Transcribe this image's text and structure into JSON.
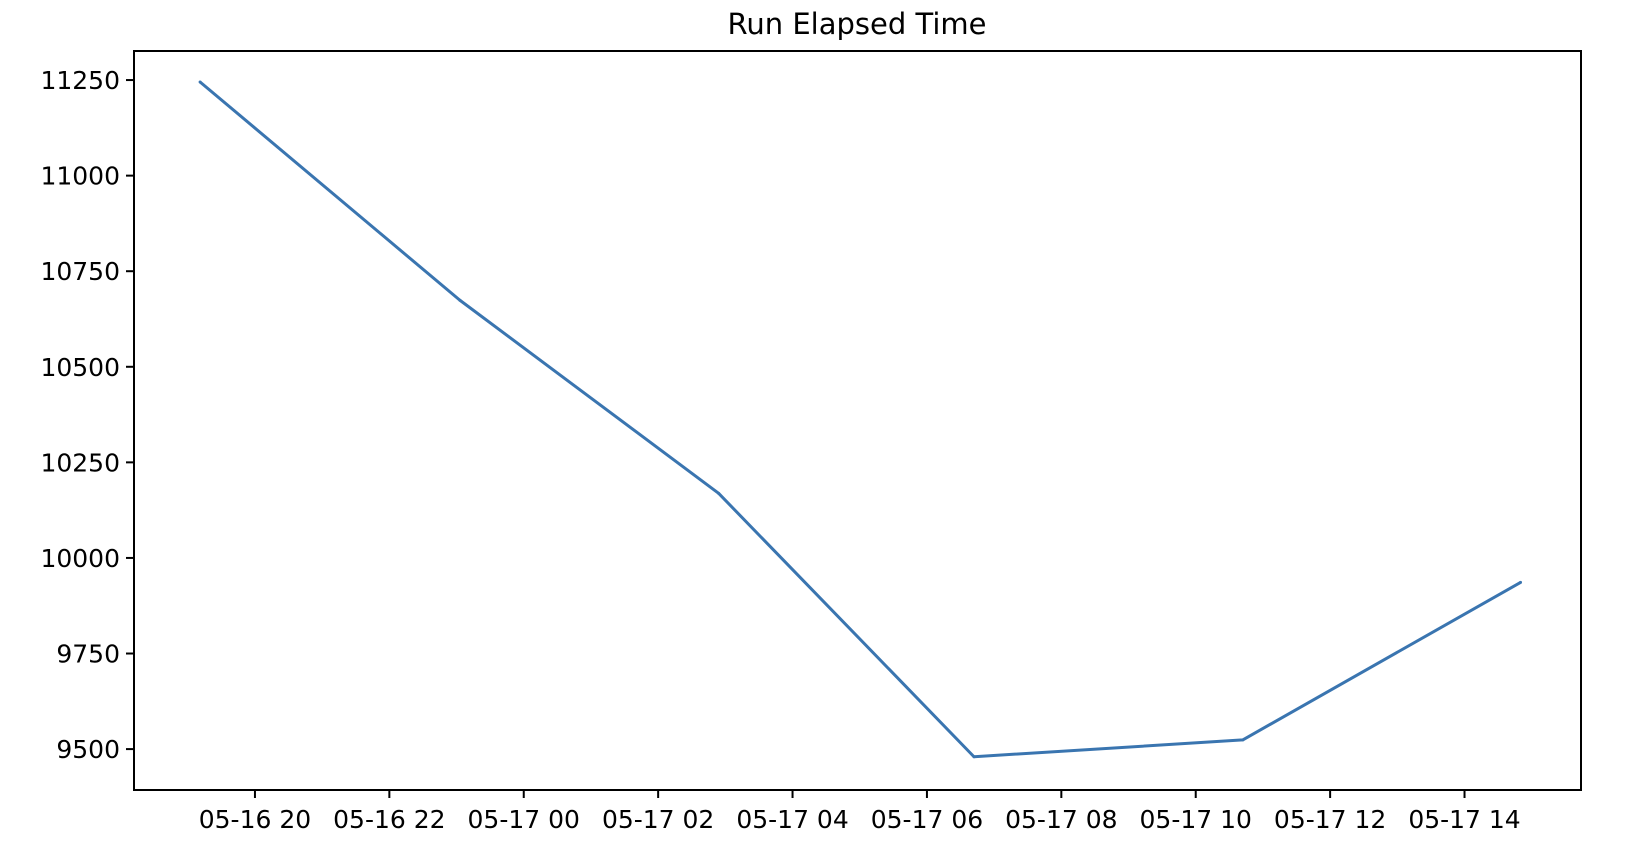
{
  "chart_data": {
    "type": "line",
    "title": "Run Elapsed Time",
    "xlabel": "",
    "ylabel": "",
    "x": [
      "05-16 19:11",
      "05-16 23:03",
      "05-17 02:54",
      "05-17 06:42",
      "05-17 10:42",
      "05-17 14:50"
    ],
    "series": [
      {
        "values": [
          11245,
          10674,
          10169,
          9480,
          9524,
          9936
        ],
        "color": "#3a75b0"
      }
    ],
    "xlim": [
      "05-16 18:12",
      "05-17 15:44"
    ],
    "ylim": [
      9393,
      11326
    ],
    "xticks": [
      "05-16 20",
      "05-16 22",
      "05-17 00",
      "05-17 02",
      "05-17 04",
      "05-17 06",
      "05-17 08",
      "05-17 10",
      "05-17 12",
      "05-17 14"
    ],
    "yticks": [
      9500,
      9750,
      10000,
      10250,
      10500,
      10750,
      11000,
      11250
    ],
    "grid": false,
    "legend": "none"
  }
}
